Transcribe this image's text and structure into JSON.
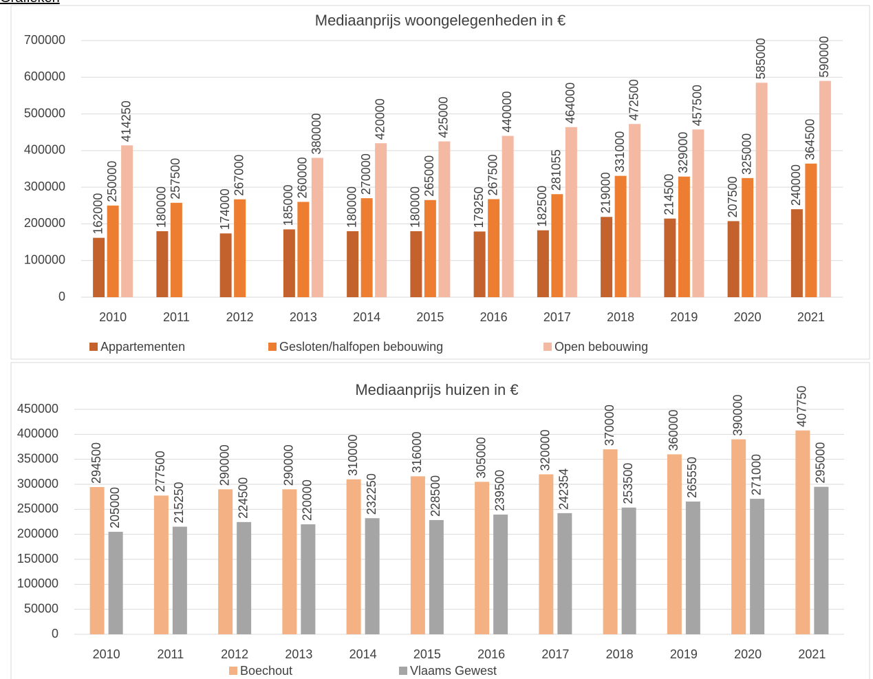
{
  "heading": "Grafieken",
  "chart_data": [
    {
      "type": "bar",
      "title": "Mediaanprijs woongelegenheden in €",
      "categories": [
        "2010",
        "2011",
        "2012",
        "2013",
        "2014",
        "2015",
        "2016",
        "2017",
        "2018",
        "2019",
        "2020",
        "2021"
      ],
      "series": [
        {
          "name": "Appartementen",
          "color": "#c4622d",
          "values": [
            162000,
            180000,
            174000,
            185000,
            180000,
            180000,
            179250,
            182500,
            219000,
            214500,
            207500,
            240000
          ]
        },
        {
          "name": "Gesloten/halfopen bebouwing",
          "color": "#ed7d31",
          "values": [
            250000,
            257500,
            267000,
            260000,
            270000,
            265000,
            267500,
            281055,
            331000,
            329000,
            325000,
            364500
          ]
        },
        {
          "name": "Open bebouwing",
          "color": "#f4b9a3",
          "values": [
            414250,
            null,
            null,
            380000,
            420000,
            425000,
            440000,
            464000,
            472500,
            457500,
            585000,
            590000
          ]
        }
      ],
      "ylim": [
        0,
        700000
      ],
      "yticks": [
        0,
        100000,
        200000,
        300000,
        400000,
        500000,
        600000,
        700000
      ],
      "grid": true,
      "legend": "bottom"
    },
    {
      "type": "bar",
      "title": "Mediaanprijs huizen in €",
      "categories": [
        "2010",
        "2011",
        "2012",
        "2013",
        "2014",
        "2015",
        "2016",
        "2017",
        "2018",
        "2019",
        "2020",
        "2021"
      ],
      "series": [
        {
          "name": "Boechout",
          "color": "#f4b183",
          "values": [
            294500,
            277500,
            290000,
            290000,
            310000,
            316000,
            305000,
            320000,
            370000,
            360000,
            390000,
            407750
          ]
        },
        {
          "name": "Vlaams Gewest",
          "color": "#a5a5a5",
          "values": [
            205000,
            215250,
            224500,
            220000,
            232250,
            228500,
            239500,
            242354,
            253500,
            265550,
            271000,
            295000
          ]
        }
      ],
      "ylim": [
        0,
        450000
      ],
      "yticks": [
        0,
        50000,
        100000,
        150000,
        200000,
        250000,
        300000,
        350000,
        400000,
        450000
      ],
      "grid": true,
      "legend": "bottom"
    }
  ]
}
